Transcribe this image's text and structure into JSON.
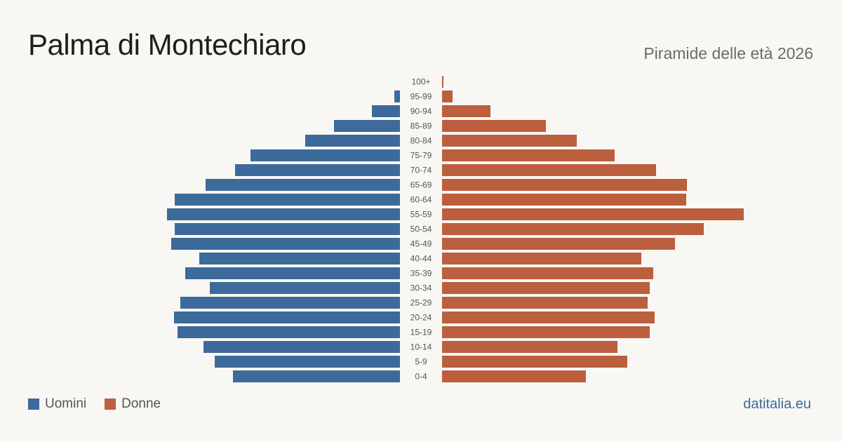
{
  "header": {
    "title": "Palma di Montechiaro",
    "subtitle": "Piramide delle età 2026"
  },
  "legend": {
    "men_label": "Uomini",
    "women_label": "Donne"
  },
  "brand": "datitalia.eu",
  "colors": {
    "men": "#3b6a9b",
    "women": "#bb5f3f",
    "background": "#f9f7f3"
  },
  "chart_data": {
    "type": "bar",
    "orientation": "horizontal-pyramid",
    "categories": [
      "100+",
      "95-99",
      "90-94",
      "85-89",
      "80-84",
      "75-79",
      "70-74",
      "65-69",
      "60-64",
      "55-59",
      "50-54",
      "45-49",
      "40-44",
      "35-39",
      "30-34",
      "25-29",
      "20-24",
      "15-19",
      "10-14",
      "5-9",
      "0-4"
    ],
    "series": [
      {
        "name": "Uomini",
        "values": [
          0,
          8,
          40,
          94,
          135,
          213,
          235,
          277,
          321,
          332,
          321,
          326,
          286,
          306,
          271,
          313,
          322,
          317,
          280,
          264,
          238
        ]
      },
      {
        "name": "Donne",
        "values": [
          2,
          15,
          69,
          148,
          192,
          246,
          305,
          349,
          348,
          430,
          373,
          332,
          284,
          301,
          296,
          293,
          303,
          296,
          250,
          264,
          205
        ]
      }
    ],
    "grid": false,
    "legend_position": "bottom-left"
  }
}
